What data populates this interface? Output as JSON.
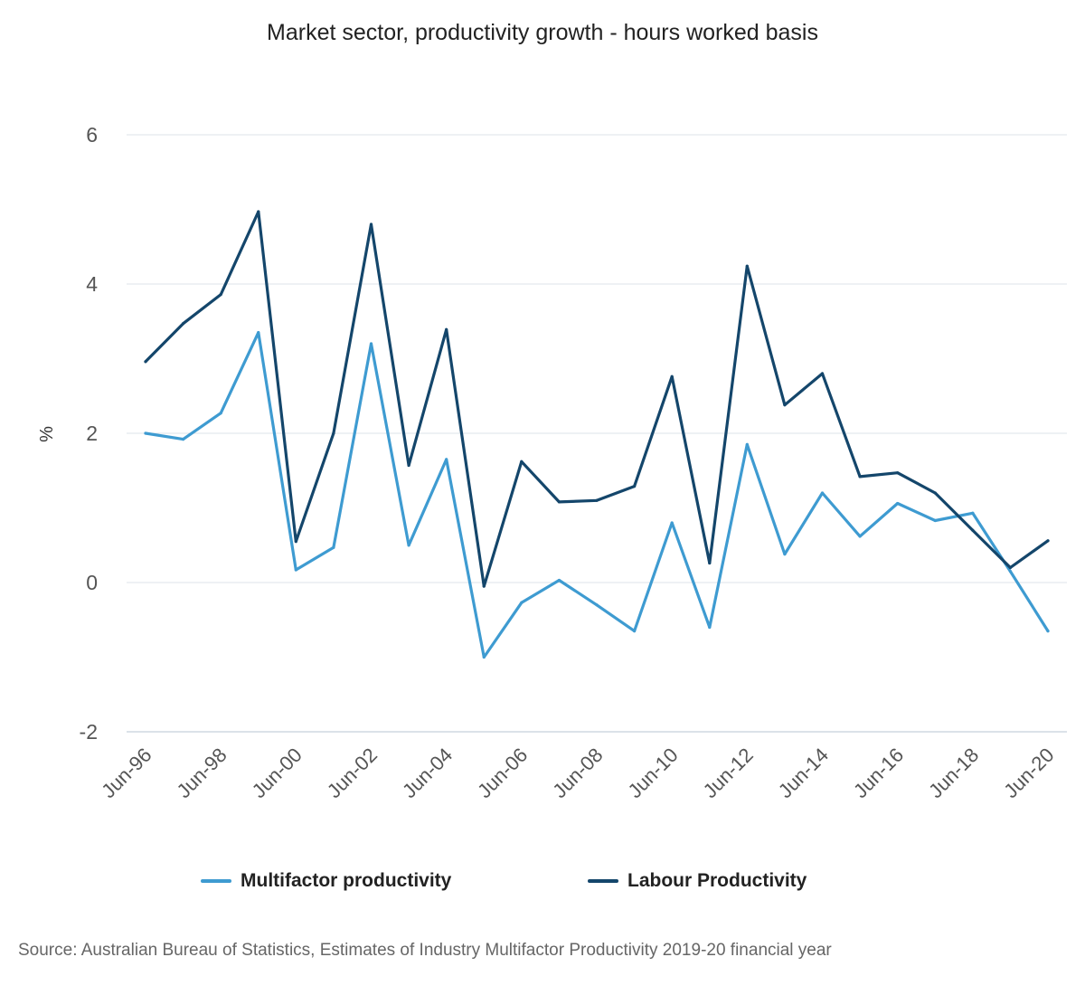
{
  "chart_data": {
    "type": "line",
    "title": "Market sector, productivity growth - hours worked basis",
    "ylabel": "%",
    "xlabel": "",
    "ylim": [
      -2,
      6
    ],
    "yticks": [
      "-2",
      "0",
      "2",
      "4",
      "6"
    ],
    "categories": [
      "Jun-96",
      "Jun-97",
      "Jun-98",
      "Jun-99",
      "Jun-00",
      "Jun-01",
      "Jun-02",
      "Jun-03",
      "Jun-04",
      "Jun-05",
      "Jun-06",
      "Jun-07",
      "Jun-08",
      "Jun-09",
      "Jun-10",
      "Jun-11",
      "Jun-12",
      "Jun-13",
      "Jun-14",
      "Jun-15",
      "Jun-16",
      "Jun-17",
      "Jun-18",
      "Jun-19",
      "Jun-20"
    ],
    "x_tick_labels": [
      "Jun-96",
      "Jun-98",
      "Jun-00",
      "Jun-02",
      "Jun-04",
      "Jun-06",
      "Jun-08",
      "Jun-10",
      "Jun-12",
      "Jun-14",
      "Jun-16",
      "Jun-18",
      "Jun-20"
    ],
    "series": [
      {
        "name": "Multifactor productivity",
        "color": "#3e9bd1",
        "values": [
          2.0,
          1.92,
          2.27,
          3.35,
          0.17,
          0.47,
          3.2,
          0.5,
          1.65,
          -1.0,
          -0.27,
          0.03,
          -0.3,
          -0.65,
          0.8,
          -0.6,
          1.85,
          0.38,
          1.2,
          0.62,
          1.06,
          0.83,
          0.93,
          0.15,
          -0.65
        ]
      },
      {
        "name": "Labour Productivity",
        "color": "#14466b",
        "values": [
          2.96,
          3.47,
          3.86,
          4.97,
          0.55,
          2.0,
          4.8,
          1.57,
          3.39,
          -0.05,
          1.62,
          1.08,
          1.1,
          1.29,
          2.76,
          0.26,
          4.24,
          2.38,
          2.8,
          1.42,
          1.47,
          1.2,
          0.7,
          0.2,
          0.56
        ]
      }
    ],
    "grid": true,
    "legend_position": "bottom"
  },
  "source_text": "Source: Australian Bureau of Statistics, Estimates of Industry Multifactor Productivity 2019-20 financial year"
}
